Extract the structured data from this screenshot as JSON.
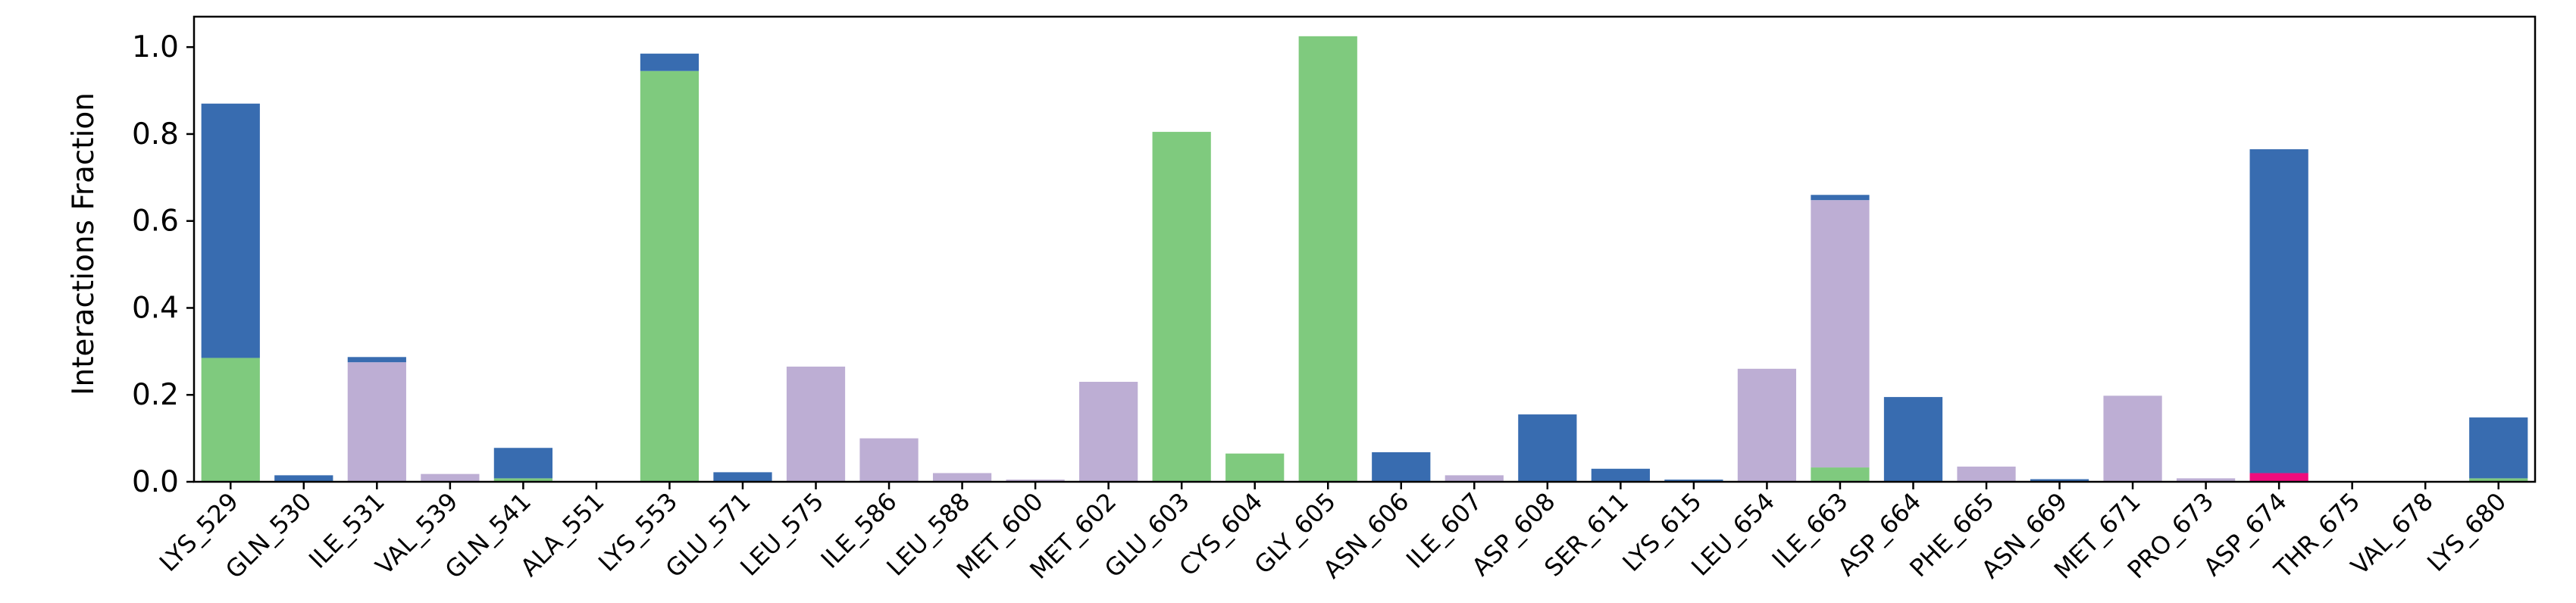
{
  "chart_data": {
    "type": "bar",
    "stacked": true,
    "title": "",
    "xlabel": "",
    "ylabel": "Interactions Fraction",
    "ylim": [
      0,
      1.07
    ],
    "yticks": [
      0.0,
      0.2,
      0.4,
      0.6,
      0.8,
      1.0
    ],
    "ytick_labels": [
      "0.0",
      "0.2",
      "0.4",
      "0.6",
      "0.8",
      "1.0"
    ],
    "grid": false,
    "legend": "none",
    "categories": [
      "LYS_529",
      "GLN_530",
      "ILE_531",
      "VAL_539",
      "GLN_541",
      "ALA_551",
      "LYS_553",
      "GLU_571",
      "LEU_575",
      "ILE_586",
      "LEU_588",
      "MET_600",
      "MET_602",
      "GLU_603",
      "CYS_604",
      "GLY_605",
      "ASN_606",
      "ILE_607",
      "ASP_608",
      "SER_611",
      "LYS_615",
      "LEU_654",
      "ILE_663",
      "ASP_664",
      "PHE_665",
      "ASN_669",
      "MET_671",
      "PRO_673",
      "ASP_674",
      "THR_675",
      "VAL_678",
      "LYS_680"
    ],
    "series": [
      {
        "color": "#7fca7e",
        "values": [
          0.285,
          0,
          0,
          0,
          0.008,
          0,
          0.945,
          0,
          0,
          0,
          0,
          0,
          0,
          0.805,
          0.065,
          1.025,
          0,
          0,
          0,
          0,
          0,
          0,
          0.033,
          0,
          0,
          0,
          0,
          0,
          0,
          0,
          0,
          0.008
        ]
      },
      {
        "color": "#bdaed4",
        "values": [
          0,
          0,
          0.275,
          0.018,
          0,
          0,
          0,
          0,
          0.265,
          0.1,
          0.02,
          0.005,
          0.23,
          0,
          0,
          0,
          0,
          0.015,
          0,
          0,
          0,
          0.26,
          0.615,
          0,
          0.035,
          0,
          0.198,
          0.008,
          0,
          0,
          0,
          0
        ]
      },
      {
        "color": "#ef0d7d",
        "values": [
          0,
          0,
          0,
          0,
          0,
          0,
          0,
          0,
          0,
          0,
          0,
          0,
          0,
          0,
          0,
          0,
          0,
          0,
          0,
          0,
          0,
          0,
          0,
          0,
          0,
          0,
          0,
          0,
          0.02,
          0,
          0,
          0
        ]
      },
      {
        "color": "#386cb0",
        "values": [
          0.585,
          0.015,
          0.012,
          0,
          0.07,
          0,
          0.04,
          0.022,
          0,
          0,
          0,
          0,
          0,
          0,
          0,
          0,
          0.068,
          0,
          0.155,
          0.03,
          0.005,
          0,
          0.012,
          0.195,
          0,
          0.006,
          0,
          0,
          0.745,
          0,
          0,
          0.14
        ]
      }
    ]
  }
}
